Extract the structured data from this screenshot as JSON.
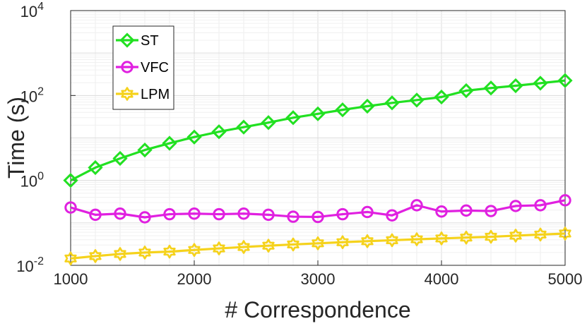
{
  "chart_data": {
    "type": "line",
    "title": "",
    "xlabel": "# Correspondence",
    "ylabel": "Time (s)",
    "yscale": "log",
    "xlim": [
      1000,
      5000
    ],
    "ylim_exponents": [
      -2,
      4
    ],
    "x_ticks": [
      "1000",
      "2000",
      "3000",
      "4000",
      "5000"
    ],
    "y_ticks": [
      {
        "base": "10",
        "exp": "-2"
      },
      {
        "base": "10",
        "exp": "0"
      },
      {
        "base": "10",
        "exp": "2"
      },
      {
        "base": "10",
        "exp": "4"
      }
    ],
    "grid": true,
    "legend_position": "top-left",
    "x": [
      1000,
      1200,
      1400,
      1600,
      1800,
      2000,
      2200,
      2400,
      2600,
      2800,
      3000,
      3200,
      3400,
      3600,
      3800,
      4000,
      4200,
      4400,
      4600,
      4800,
      5000
    ],
    "series": [
      {
        "name": "ST",
        "color": "#21e021",
        "marker": "diamond",
        "values": [
          1.0,
          2.0,
          3.3,
          5.2,
          7.5,
          10.5,
          14,
          18,
          23,
          30,
          37,
          46,
          56,
          67,
          78,
          92,
          130,
          150,
          170,
          195,
          225
        ]
      },
      {
        "name": "VFC",
        "color": "#e020e0",
        "marker": "circle",
        "values": [
          0.23,
          0.155,
          0.165,
          0.135,
          0.16,
          0.165,
          0.16,
          0.165,
          0.155,
          0.14,
          0.138,
          0.16,
          0.18,
          0.15,
          0.26,
          0.185,
          0.195,
          0.19,
          0.25,
          0.26,
          0.34
        ]
      },
      {
        "name": "LPM",
        "color": "#f5d21c",
        "marker": "hexagram",
        "values": [
          0.0145,
          0.0165,
          0.0185,
          0.02,
          0.021,
          0.023,
          0.025,
          0.027,
          0.029,
          0.031,
          0.033,
          0.035,
          0.037,
          0.039,
          0.041,
          0.043,
          0.045,
          0.047,
          0.05,
          0.053,
          0.056
        ]
      }
    ]
  }
}
